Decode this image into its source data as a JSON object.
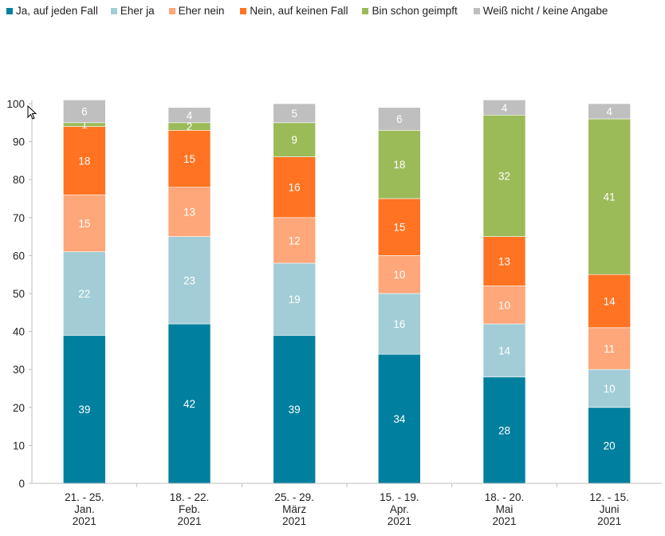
{
  "chart_data": {
    "type": "bar",
    "stacked": true,
    "categories": [
      [
        "21. - 25.",
        "Jan.",
        "2021"
      ],
      [
        "18. - 22.",
        "Feb.",
        "2021"
      ],
      [
        "25. - 29.",
        "März",
        "2021"
      ],
      [
        "15. - 19.",
        "Apr.",
        "2021"
      ],
      [
        "18. - 20.",
        "Mai",
        "2021"
      ],
      [
        "12. - 15.",
        "Juni",
        "2021"
      ]
    ],
    "series": [
      {
        "name": "Ja, auf jeden Fall",
        "color": "#00809e",
        "values": [
          39,
          42,
          39,
          34,
          28,
          20
        ]
      },
      {
        "name": "Eher ja",
        "color": "#a3cdd6",
        "values": [
          22,
          23,
          19,
          16,
          14,
          10
        ]
      },
      {
        "name": "Eher nein",
        "color": "#fda77a",
        "values": [
          15,
          13,
          12,
          10,
          10,
          11
        ]
      },
      {
        "name": "Nein, auf keinen Fall",
        "color": "#ff7322",
        "values": [
          18,
          15,
          16,
          15,
          13,
          14
        ]
      },
      {
        "name": "Bin schon geimpft",
        "color": "#9bbb59",
        "values": [
          1,
          2,
          9,
          18,
          32,
          41
        ]
      },
      {
        "name": "Weiß nicht / keine Angabe",
        "color": "#bfbfbf",
        "values": [
          6,
          4,
          5,
          6,
          4,
          4
        ]
      }
    ],
    "ylim": [
      0,
      100
    ],
    "yticks": [
      0,
      10,
      20,
      30,
      40,
      50,
      60,
      70,
      80,
      90,
      100
    ],
    "grid": false,
    "legend_position": "top"
  }
}
